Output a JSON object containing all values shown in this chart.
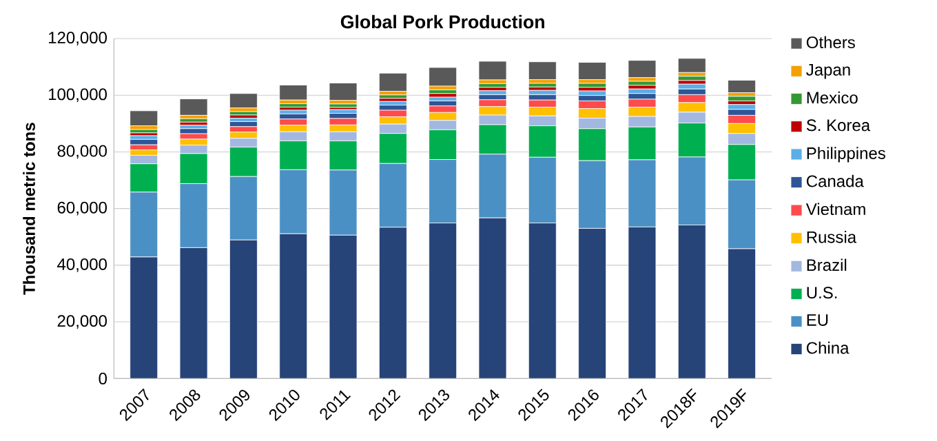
{
  "chart_data": {
    "type": "bar",
    "title": "Global Pork Production",
    "ylabel": "Thousand metric tons",
    "stacked": true,
    "legend": "right",
    "grid": "y",
    "categories": [
      "2007",
      "2008",
      "2009",
      "2010",
      "2011",
      "2012",
      "2013",
      "2014",
      "2015",
      "2016",
      "2017",
      "2018F",
      "2019F"
    ],
    "ylim": [
      0,
      120000
    ],
    "yticks": [
      {
        "value": 0,
        "label": "0"
      },
      {
        "value": 20000,
        "label": "20,000"
      },
      {
        "value": 40000,
        "label": "40,000"
      },
      {
        "value": 60000,
        "label": "60,000"
      },
      {
        "value": 80000,
        "label": "80,000"
      },
      {
        "value": 100000,
        "label": "100,000"
      },
      {
        "value": 120000,
        "label": "120,000"
      }
    ],
    "series": [
      {
        "name": "China",
        "color": "#264478",
        "values": [
          42900,
          46200,
          48900,
          51100,
          50600,
          53400,
          54900,
          56700,
          54900,
          53000,
          53500,
          54200,
          45800
        ]
      },
      {
        "name": "EU",
        "color": "#4a90c4",
        "values": [
          22900,
          22600,
          22400,
          22600,
          23000,
          22500,
          22400,
          22500,
          23200,
          23900,
          23700,
          24000,
          24300
        ]
      },
      {
        "name": "U.S.",
        "color": "#00b050",
        "values": [
          10000,
          10600,
          10400,
          10200,
          10300,
          10600,
          10500,
          10400,
          11100,
          11300,
          11600,
          12000,
          12500
        ]
      },
      {
        "name": "Brazil",
        "color": "#a3b8e0",
        "values": [
          3000,
          3000,
          3100,
          3200,
          3200,
          3300,
          3300,
          3400,
          3500,
          3700,
          3700,
          3800,
          3900
        ]
      },
      {
        "name": "Russia",
        "color": "#ffc000",
        "values": [
          1900,
          2100,
          2200,
          2300,
          2400,
          2600,
          2800,
          3000,
          3100,
          3400,
          3300,
          3400,
          3500
        ]
      },
      {
        "name": "Vietnam",
        "color": "#ff4b4b",
        "values": [
          1800,
          1900,
          1900,
          2200,
          2300,
          2300,
          2300,
          2400,
          2500,
          2700,
          2800,
          2800,
          2900
        ]
      },
      {
        "name": "Canada",
        "color": "#2f5597",
        "values": [
          1900,
          1800,
          1800,
          1800,
          1800,
          1800,
          1800,
          1800,
          1900,
          1900,
          2000,
          2000,
          2100
        ]
      },
      {
        "name": "Philippines",
        "color": "#5baee8",
        "values": [
          1300,
          1200,
          1200,
          1300,
          1300,
          1300,
          1300,
          1400,
          1500,
          1600,
          1600,
          1700,
          1700
        ]
      },
      {
        "name": "S. Korea",
        "color": "#c00000",
        "values": [
          1000,
          1100,
          1100,
          1100,
          800,
          1100,
          1300,
          1200,
          1200,
          1300,
          1300,
          1300,
          1300
        ]
      },
      {
        "name": "Mexico",
        "color": "#339933",
        "values": [
          1200,
          1200,
          1200,
          1200,
          1200,
          1200,
          1300,
          1300,
          1300,
          1400,
          1400,
          1500,
          1600
        ]
      },
      {
        "name": "Japan",
        "color": "#f4a000",
        "values": [
          1300,
          1200,
          1300,
          1300,
          1300,
          1300,
          1300,
          1300,
          1300,
          1300,
          1300,
          1300,
          1300
        ]
      },
      {
        "name": "Others",
        "color": "#595959",
        "values": [
          5300,
          5800,
          5100,
          5300,
          6100,
          6400,
          6600,
          6600,
          6300,
          6100,
          6100,
          5000,
          4400
        ]
      }
    ]
  }
}
